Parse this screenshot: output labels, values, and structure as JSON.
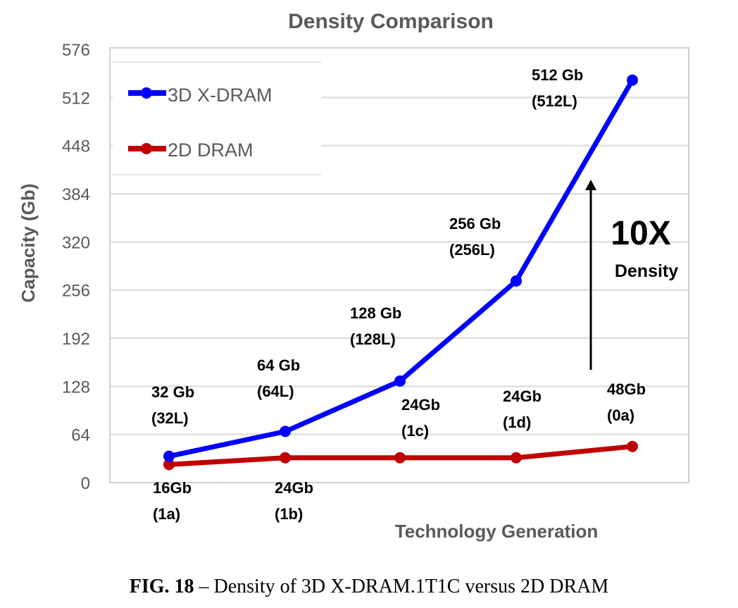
{
  "chart_data": {
    "type": "line",
    "title": "Density Comparison",
    "xlabel": "Technology Generation",
    "ylabel": "Capacity (Gb)",
    "ylim": [
      0,
      576
    ],
    "yticks": [
      0,
      64,
      128,
      192,
      256,
      320,
      384,
      448,
      512,
      576
    ],
    "grid": "horizontal",
    "legend_position": "top-left",
    "series": [
      {
        "name": "3D X-DRAM",
        "color": "#0000FF",
        "values": [
          35,
          68,
          135,
          268,
          535
        ],
        "labels": [
          [
            "32 Gb",
            "(32L)"
          ],
          [
            "64 Gb",
            "(64L)"
          ],
          [
            "128 Gb",
            "(128L)"
          ],
          [
            "256 Gb",
            "(256L)"
          ],
          [
            "512 Gb",
            "(512L)"
          ]
        ]
      },
      {
        "name": "2D DRAM",
        "color": "#C00000",
        "values": [
          24,
          33,
          33,
          33,
          48
        ],
        "labels": [
          [
            "16Gb",
            "(1a)"
          ],
          [
            "24Gb",
            "(1b)"
          ],
          [
            "24Gb",
            "(1c)"
          ],
          [
            "24Gb",
            "(1d)"
          ],
          [
            "48Gb",
            "(0a)"
          ]
        ]
      }
    ],
    "annotation": {
      "big": "10X",
      "small": "Density"
    }
  },
  "caption": {
    "bold": "FIG. 18",
    "text": " – Density of 3D X-DRAM.1T1C versus 2D DRAM"
  }
}
